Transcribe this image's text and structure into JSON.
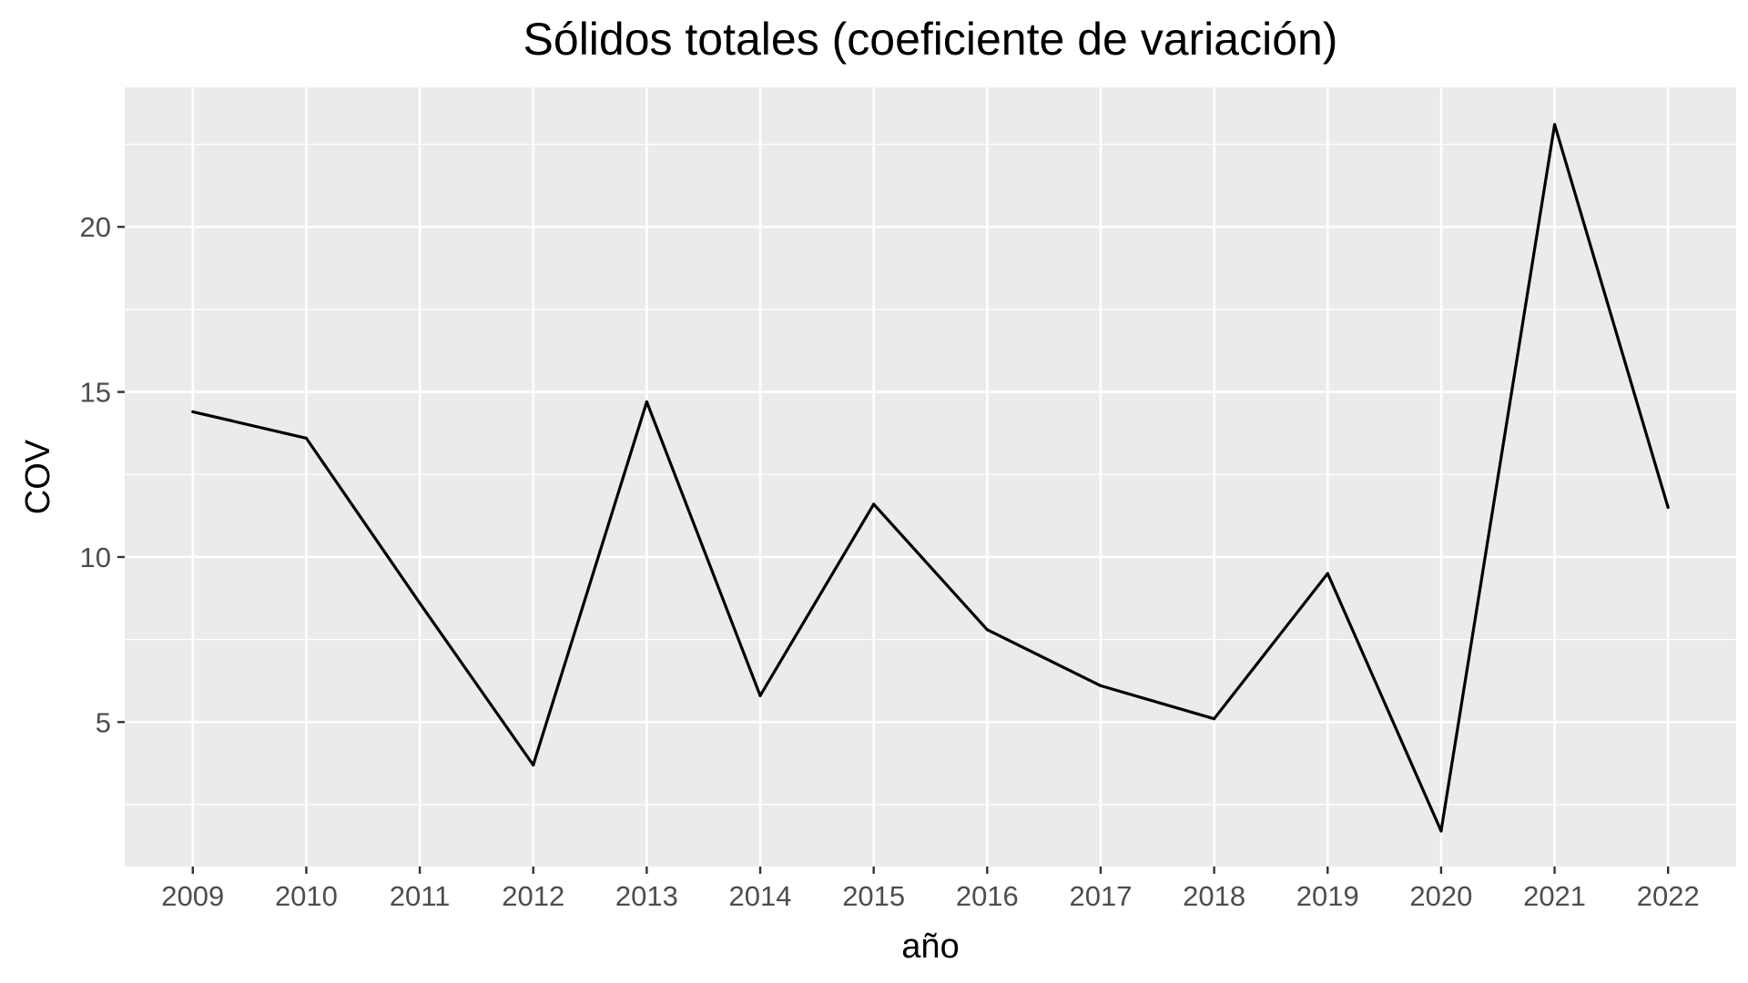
{
  "chart_data": {
    "type": "line",
    "title": "Sólidos totales (coeficiente de variación)",
    "xlabel": "año",
    "ylabel": "COV",
    "x": [
      2009,
      2010,
      2011,
      2012,
      2013,
      2014,
      2015,
      2016,
      2017,
      2018,
      2019,
      2020,
      2021,
      2022
    ],
    "x_tick_labels": [
      "2009",
      "2010",
      "2011",
      "2012",
      "2013",
      "2014",
      "2015",
      "2016",
      "2017",
      "2018",
      "2019",
      "2020",
      "2021",
      "2022"
    ],
    "series": [
      {
        "values": [
          14.4,
          13.6,
          8.6,
          3.7,
          14.7,
          5.8,
          11.6,
          7.8,
          6.1,
          5.1,
          9.5,
          1.7,
          23.1,
          11.5
        ],
        "color": "#000000"
      }
    ],
    "y_ticks": [
      5,
      10,
      15,
      20
    ],
    "y_tick_labels": [
      "5",
      "10",
      "15",
      "20"
    ],
    "ylim": [
      0.625,
      24.225
    ],
    "xlim": [
      2008.4,
      2022.6
    ],
    "grid": true,
    "legend": "none",
    "panel_background": "#ebebeb",
    "grid_color": "#ffffff"
  }
}
